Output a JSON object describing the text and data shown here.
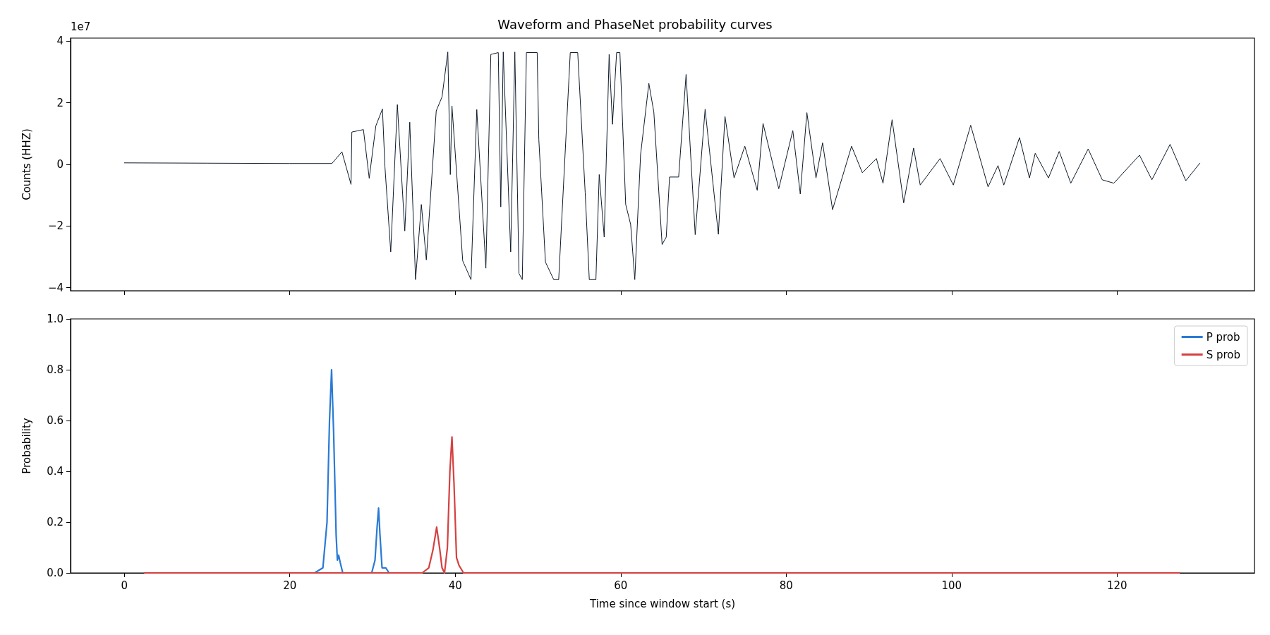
{
  "chart_data": [
    {
      "type": "line",
      "title": "Waveform and PhaseNet probability curves",
      "ylabel": "Counts (HHZ)",
      "annotations": [
        "1e7"
      ],
      "xlim": [
        -6.5,
        136.6
      ],
      "xticks": [
        0,
        20,
        40,
        60,
        80,
        100,
        120
      ],
      "tick_labels": "y",
      "ylim": [
        -4.1,
        4.1
      ],
      "yticks": [
        {
          "value": -4,
          "label": "−4"
        },
        {
          "value": -2,
          "label": "−2"
        },
        0,
        2,
        4
      ],
      "grid": false,
      "legend": false,
      "marker": "none",
      "line_style": "solid",
      "series": [
        {
          "color": "#0d1b2a",
          "x": [
            0,
            10,
            20,
            25.1,
            26.3,
            27.4,
            27.5,
            28.9,
            29.6,
            30.4,
            31.2,
            31.5,
            32.2,
            33.0,
            33.9,
            34.5,
            35.2,
            35.9,
            36.5,
            37.7,
            38.4,
            39.1,
            39.4,
            39.6,
            40.9,
            41.9,
            42.6,
            43.7,
            44.3,
            45.2,
            45.5,
            45.8,
            46.7,
            47.2,
            47.7,
            48.1,
            48.6,
            49.9,
            50.1,
            50.9,
            51.9,
            52.5,
            53.9,
            54.8,
            55.7,
            56.2,
            57.0,
            57.4,
            58.0,
            58.6,
            59.0,
            59.5,
            59.9,
            60.6,
            61.2,
            61.7,
            62.4,
            63.4,
            64.0,
            65.0,
            65.5,
            65.9,
            67.0,
            67.9,
            69.0,
            70.2,
            71.8,
            72.6,
            73.7,
            75.0,
            76.5,
            77.2,
            79.1,
            80.8,
            81.7,
            82.5,
            83.6,
            84.4,
            85.6,
            87.9,
            89.2,
            90.9,
            91.7,
            92.8,
            94.2,
            95.4,
            96.2,
            98.6,
            100.2,
            102.3,
            104.4,
            105.6,
            106.3,
            108.2,
            109.4,
            110.1,
            111.7,
            113.0,
            114.4,
            116.5,
            118.2,
            119.6,
            122.7,
            124.2,
            126.4,
            128.3,
            130.0
          ],
          "values": [
            0.05,
            0.04,
            0.03,
            0.03,
            0.41,
            -0.65,
            1.05,
            1.13,
            -0.45,
            1.25,
            1.8,
            -0.08,
            -2.84,
            1.94,
            -2.16,
            1.37,
            -3.74,
            -1.3,
            -3.1,
            1.74,
            2.19,
            3.65,
            -0.33,
            1.9,
            -3.13,
            -3.74,
            1.78,
            -3.37,
            3.57,
            3.63,
            -1.38,
            3.65,
            -2.84,
            3.65,
            -3.54,
            -3.74,
            3.63,
            3.63,
            0.81,
            -3.17,
            -3.74,
            -3.74,
            3.63,
            3.63,
            -0.9,
            -3.74,
            -3.74,
            -0.33,
            -2.36,
            3.57,
            1.3,
            3.63,
            3.63,
            -1.3,
            -1.95,
            -3.74,
            0.32,
            2.63,
            1.7,
            -2.6,
            -2.36,
            -0.41,
            -0.41,
            2.92,
            -2.28,
            1.79,
            -2.27,
            1.56,
            -0.44,
            0.59,
            -0.84,
            1.33,
            -0.79,
            1.1,
            -0.96,
            1.68,
            -0.44,
            0.7,
            -1.47,
            0.59,
            -0.27,
            0.19,
            -0.61,
            1.45,
            -1.25,
            0.53,
            -0.67,
            0.19,
            -0.67,
            1.27,
            -0.73,
            -0.04,
            -0.67,
            0.87,
            -0.44,
            0.36,
            -0.44,
            0.42,
            -0.61,
            0.5,
            -0.5,
            -0.61,
            0.3,
            -0.5,
            0.65,
            -0.53,
            0.04
          ]
        }
      ]
    },
    {
      "type": "line",
      "xlabel": "Time since window start (s)",
      "ylabel": "Probability",
      "xlim": [
        -6.5,
        136.6
      ],
      "xticks": [
        0,
        20,
        40,
        60,
        80,
        100,
        120
      ],
      "ylim": [
        0,
        1
      ],
      "yticks": [
        {
          "value": 0,
          "label": "0.0"
        },
        0.2,
        0.4,
        0.6,
        0.8,
        {
          "value": 1,
          "label": "1.0"
        }
      ],
      "grid": false,
      "legend": "top right",
      "marker": "none",
      "line_style": "solid",
      "series": [
        {
          "name": "P prob",
          "color": "#2a7ad5",
          "x": [
            2.5,
            23,
            24,
            24.5,
            24.8,
            25.05,
            25.3,
            25.6,
            25.75,
            25.9,
            26.1,
            26.4,
            29.9,
            30.3,
            30.55,
            30.73,
            30.9,
            31.15,
            31.6,
            32
          ],
          "values": [
            0,
            0,
            0.02,
            0.2,
            0.6,
            0.8,
            0.55,
            0.15,
            0.05,
            0.07,
            0.04,
            0,
            0,
            0.05,
            0.18,
            0.255,
            0.15,
            0.02,
            0.02,
            0
          ]
        },
        {
          "name": "S prob",
          "color": "#d64040",
          "x": [
            2.5,
            36,
            36.8,
            37.3,
            37.75,
            38.1,
            38.4,
            38.7,
            39.05,
            39.35,
            39.6,
            39.85,
            40.15,
            40.45,
            41,
            127.5
          ],
          "values": [
            0,
            0,
            0.02,
            0.09,
            0.18,
            0.1,
            0.02,
            0,
            0.1,
            0.4,
            0.535,
            0.35,
            0.06,
            0.03,
            0,
            0
          ]
        }
      ]
    }
  ]
}
